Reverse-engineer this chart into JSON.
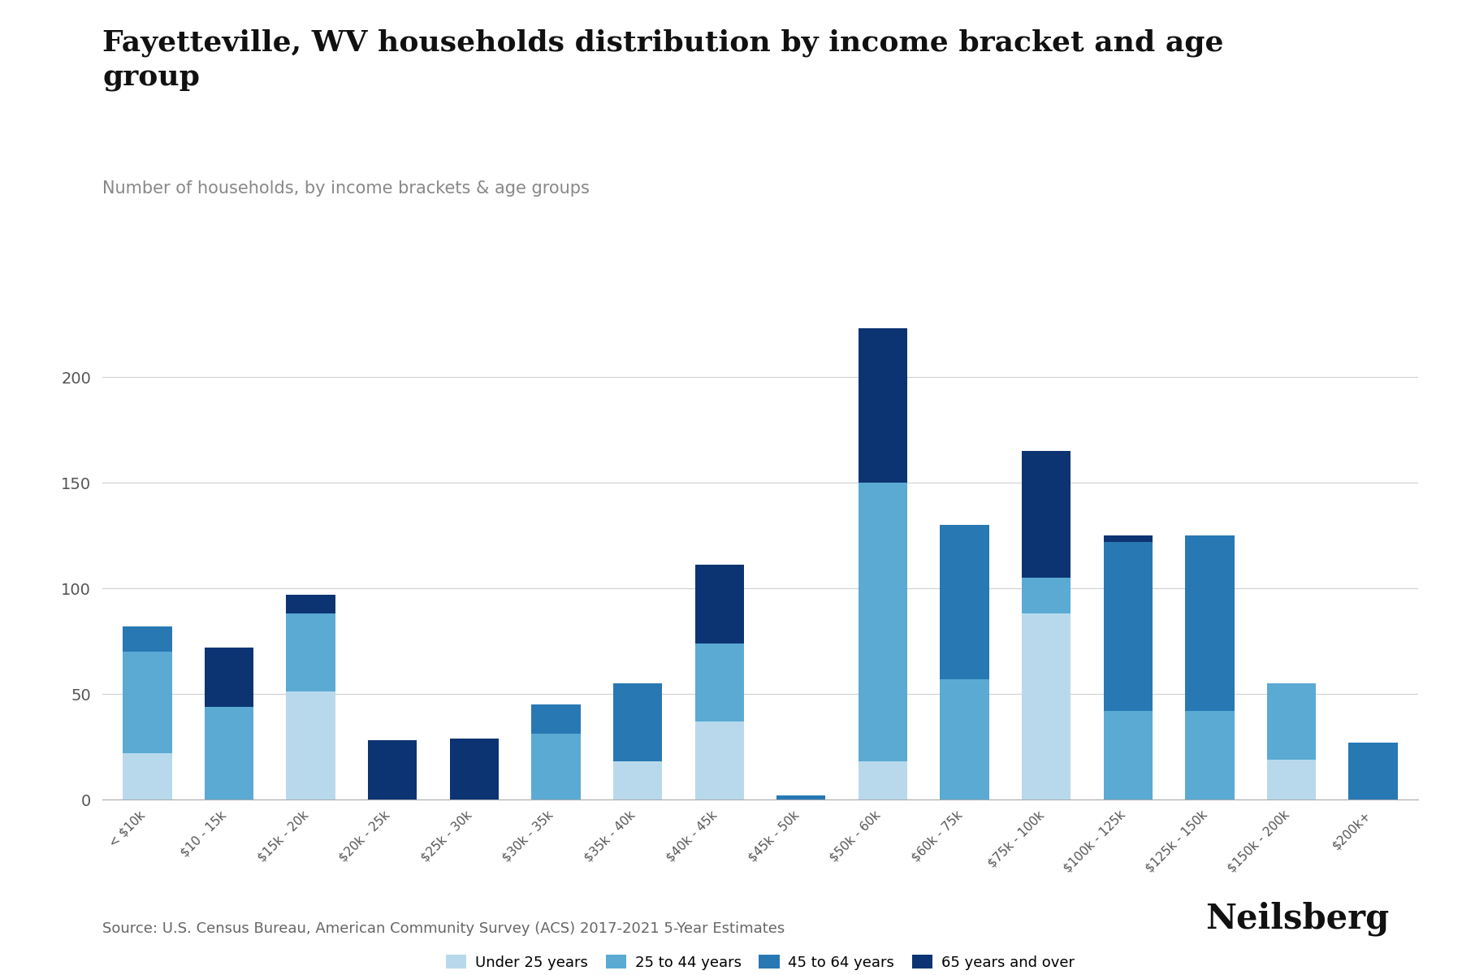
{
  "title": "Fayetteville, WV households distribution by income bracket and age\ngroup",
  "subtitle": "Number of households, by income brackets & age groups",
  "source": "Source: U.S. Census Bureau, American Community Survey (ACS) 2017-2021 5-Year Estimates",
  "categories": [
    "< $10k",
    "$10 - 15k",
    "$15k - 20k",
    "$20k - 25k",
    "$25k - 30k",
    "$30k - 35k",
    "$35k - 40k",
    "$40k - 45k",
    "$45k - 50k",
    "$50k - 60k",
    "$60k - 75k",
    "$75k - 100k",
    "$100k - 125k",
    "$125k - 150k",
    "$150k - 200k",
    "$200k+"
  ],
  "series": {
    "Under 25 years": [
      22,
      0,
      51,
      0,
      0,
      0,
      18,
      37,
      0,
      18,
      0,
      88,
      0,
      0,
      19,
      0
    ],
    "25 to 44 years": [
      48,
      44,
      37,
      0,
      0,
      31,
      0,
      37,
      0,
      132,
      57,
      17,
      42,
      42,
      36,
      0
    ],
    "45 to 64 years": [
      12,
      0,
      0,
      0,
      0,
      14,
      37,
      0,
      2,
      0,
      73,
      0,
      80,
      83,
      0,
      27
    ],
    "65 years and over": [
      0,
      28,
      9,
      28,
      29,
      0,
      0,
      37,
      0,
      73,
      0,
      60,
      3,
      0,
      0,
      0
    ]
  },
  "colors": {
    "Under 25 years": "#b8d9ec",
    "25 to 44 years": "#5aaad4",
    "45 to 64 years": "#2878b4",
    "65 years and over": "#0d3472"
  },
  "ylim": [
    0,
    240
  ],
  "yticks": [
    0,
    50,
    100,
    150,
    200
  ],
  "background_color": "#ffffff",
  "grid_color": "#d0d0d0",
  "title_fontsize": 26,
  "subtitle_fontsize": 15,
  "source_fontsize": 13,
  "branding": "Neilsberg"
}
